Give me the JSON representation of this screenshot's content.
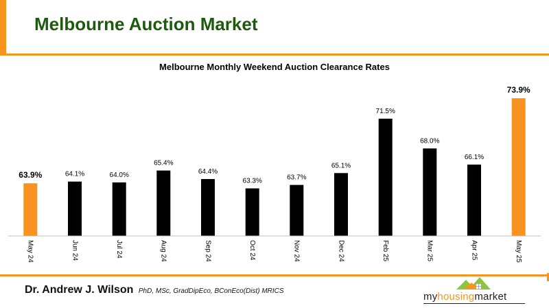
{
  "header": {
    "title": "Melbourne Auction Market"
  },
  "chart_data": {
    "type": "bar",
    "title": "Melbourne Monthly Weekend Auction Clearance Rates",
    "categories": [
      "May 24",
      "Jun 24",
      "Jul 24",
      "Aug 24",
      "Sep 24",
      "Oct 24",
      "Nov 24",
      "Dec 24",
      "Feb 25",
      "Mar 25",
      "Apr 25",
      "May 25"
    ],
    "values": [
      63.9,
      64.1,
      64.0,
      65.4,
      64.4,
      63.3,
      63.7,
      65.1,
      71.5,
      68.0,
      66.1,
      73.9
    ],
    "value_labels": [
      "63.9%",
      "64.1%",
      "64.0%",
      "65.4%",
      "64.4%",
      "63.3%",
      "63.7%",
      "65.1%",
      "71.5%",
      "68.0%",
      "66.1%",
      "73.9%"
    ],
    "highlighted": [
      0,
      11
    ],
    "ylim": [
      57.7,
      74.0
    ],
    "grid": false,
    "colors": {
      "default": "#000000",
      "highlight": "#f7931e"
    }
  },
  "footer": {
    "author_name": "Dr. Andrew J. Wilson",
    "author_credentials": "PhD, MSc, GradDipEco, BConEco(Dist) MRICS",
    "logo": {
      "part1": "my",
      "part2": "housing",
      "part3": "market",
      "icon": "house-logo-icon"
    }
  },
  "colors": {
    "accent": "#f7931e",
    "title_green": "#1e5a0e",
    "logo_green": "#8cc63f"
  }
}
